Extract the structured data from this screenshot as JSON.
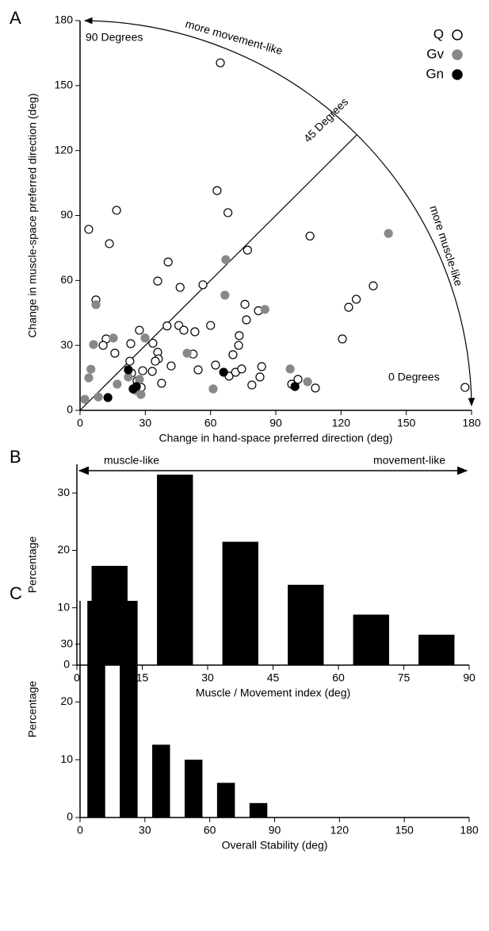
{
  "chart_data": [
    {
      "type": "scatter",
      "panel": "A",
      "xlabel": "Change in hand-space preferred direction (deg)",
      "ylabel": "Change in muscle-space preferred direction (deg)",
      "xlim": [
        0,
        180
      ],
      "ylim": [
        0,
        180
      ],
      "xticks": [
        0,
        30,
        60,
        90,
        120,
        150,
        180
      ],
      "yticks": [
        0,
        30,
        60,
        90,
        120,
        150,
        180
      ],
      "annotations": [
        "90 Degrees",
        "45 Degrees",
        "0 Degrees",
        "more movement-like",
        "more muscle-like"
      ],
      "series": [
        {
          "name": "Q",
          "color": "#000000",
          "fill": "#ffffff",
          "x": [
            4,
            64.5,
            16.8,
            13.5,
            63,
            68,
            105.7,
            7.3,
            40.5,
            77,
            46,
            56.5,
            35.7,
            75.8,
            76.5,
            82,
            134.8,
            127,
            123.5,
            120.6,
            27.3,
            33.5,
            40,
            45.4,
            47.7,
            52.8,
            60,
            12,
            16,
            10.6,
            23.3,
            35.7,
            36,
            52,
            72.9,
            73.2,
            70.3,
            54.3,
            62.3,
            41.9,
            28.8,
            22.9,
            23.7,
            33.2,
            34.6,
            37.5,
            26.2,
            28.1,
            68.5,
            71.5,
            74.3,
            79,
            83.5,
            82.7,
            97.3,
            100.2,
            108.2,
            177
          ],
          "values": [
            83.6,
            160.5,
            92.4,
            77,
            101.5,
            91.3,
            80.5,
            51,
            68.5,
            74,
            56.8,
            58,
            59.7,
            49,
            41.8,
            46,
            57.5,
            51.3,
            47.6,
            33,
            37,
            31,
            39,
            39.2,
            37,
            36.3,
            39.2,
            33,
            26.4,
            30,
            30.8,
            26.8,
            23.8,
            26,
            30,
            34.5,
            25.7,
            18.7,
            20.9,
            20.5,
            18.3,
            22.7,
            17.2,
            18,
            22.7,
            12.5,
            13.6,
            10.6,
            15.8,
            17.6,
            19.1,
            11.7,
            20.2,
            15.4,
            12.1,
            14.3,
            10.3,
            10.6
          ]
        },
        {
          "name": "Gv",
          "color": "#888888",
          "fill": "#888888",
          "x": [
            141.8,
            67,
            66.6,
            85,
            7.3,
            6.2,
            29.9,
            15.3,
            49.2,
            5,
            4,
            2.2,
            8.4,
            17.1,
            22.2,
            25.5,
            28,
            61.2,
            96.6,
            104.6,
            27.3
          ],
          "values": [
            81.7,
            69.6,
            53.2,
            46.6,
            48.8,
            30.4,
            33.4,
            33.4,
            26.4,
            19,
            15,
            5.1,
            6.2,
            12.1,
            15.4,
            9.2,
            7.3,
            9.9,
            19.1,
            13.2,
            14.3
          ]
        },
        {
          "name": "Gn",
          "color": "#000000",
          "fill": "#000000",
          "x": [
            22.2,
            66,
            98.8,
            12.8,
            24.4,
            25.9
          ],
          "values": [
            18.7,
            17.6,
            11,
            5.9,
            9.9,
            11
          ]
        }
      ]
    },
    {
      "type": "histogram",
      "panel": "B",
      "xlabel": "Muscle / Movement index (deg)",
      "ylabel": "Percentage",
      "annotations": [
        "muscle-like",
        "movement-like"
      ],
      "bins": [
        0,
        15,
        30,
        45,
        60,
        75,
        90
      ],
      "values": [
        17.3,
        33.2,
        21.5,
        14,
        8.8,
        5.3
      ],
      "color": "#000000",
      "xlim": [
        0,
        90
      ],
      "ylim": [
        0,
        35
      ],
      "xticks": [
        0,
        15,
        30,
        45,
        60,
        75,
        90
      ],
      "yticks": [
        0,
        10,
        20,
        30
      ]
    },
    {
      "type": "histogram",
      "panel": "C",
      "xlabel": "Overall Stability (deg)",
      "ylabel": "Percentage",
      "bins": [
        0,
        15,
        30,
        45,
        60,
        75,
        90
      ],
      "values": [
        37.5,
        37.5,
        12.6,
        10,
        6,
        2.5
      ],
      "color": "#000000",
      "xlim": [
        0,
        180
      ],
      "ylim": [
        0,
        37.5
      ],
      "xticks": [
        0,
        30,
        60,
        90,
        120,
        150,
        180
      ],
      "yticks": [
        0,
        10,
        20,
        30
      ]
    }
  ]
}
